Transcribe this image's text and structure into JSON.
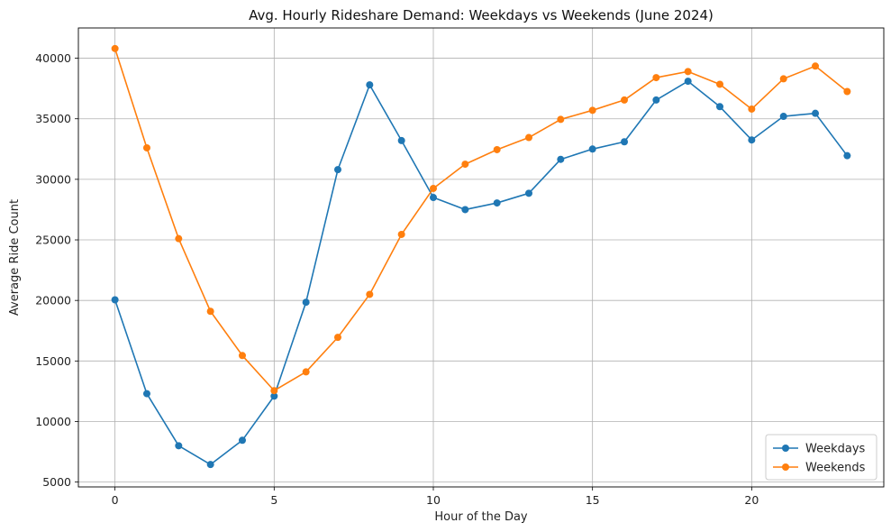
{
  "chart_data": {
    "type": "line",
    "title": "Avg. Hourly Rideshare Demand: Weekdays vs Weekends (June 2024)",
    "xlabel": "Hour of the Day",
    "ylabel": "Average Ride Count",
    "x": [
      0,
      1,
      2,
      3,
      4,
      5,
      6,
      7,
      8,
      9,
      10,
      11,
      12,
      13,
      14,
      15,
      16,
      17,
      18,
      19,
      20,
      21,
      22,
      23
    ],
    "xlim": [
      -1.15,
      24.15
    ],
    "ylim": [
      4600,
      42500
    ],
    "xticks": [
      0,
      5,
      10,
      15,
      20
    ],
    "yticks": [
      5000,
      10000,
      15000,
      20000,
      25000,
      30000,
      35000,
      40000
    ],
    "grid": true,
    "legend_position": "bottom-right",
    "series": [
      {
        "name": "Weekdays",
        "color": "#1f77b4",
        "marker": "circle",
        "values": [
          20050,
          12300,
          8000,
          6450,
          8450,
          12100,
          19850,
          30800,
          37800,
          33200,
          28500,
          27500,
          28050,
          28850,
          31650,
          32500,
          33100,
          36550,
          38100,
          36000,
          33250,
          35200,
          35450,
          31950
        ]
      },
      {
        "name": "Weekends",
        "color": "#ff7f0e",
        "marker": "circle",
        "values": [
          40800,
          32600,
          25100,
          19100,
          15450,
          12550,
          14100,
          16950,
          20500,
          25450,
          29250,
          31250,
          32450,
          33450,
          34950,
          35700,
          36550,
          38400,
          38900,
          37850,
          35800,
          38300,
          39350,
          37250
        ]
      }
    ]
  }
}
